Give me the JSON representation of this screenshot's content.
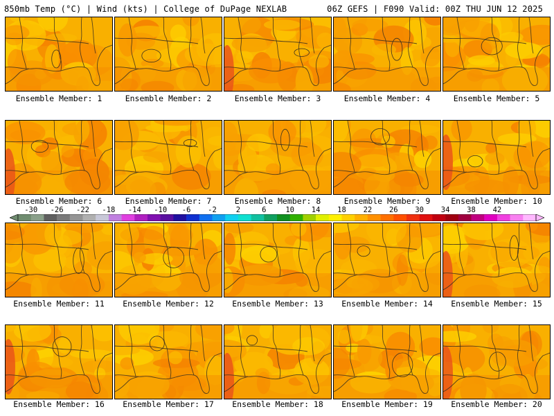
{
  "header": {
    "left": "850mb Temp (°C) | Wind (kts) | College of DuPage NEXLAB",
    "right": "06Z GEFS | F090 Valid: 00Z THU JUN 12 2025"
  },
  "panels": [
    {
      "label": "Ensemble Member: 1"
    },
    {
      "label": "Ensemble Member: 2"
    },
    {
      "label": "Ensemble Member: 3"
    },
    {
      "label": "Ensemble Member: 4"
    },
    {
      "label": "Ensemble Member: 5"
    },
    {
      "label": "Ensemble Member: 6"
    },
    {
      "label": "Ensemble Member: 7"
    },
    {
      "label": "Ensemble Member: 8"
    },
    {
      "label": "Ensemble Member: 9"
    },
    {
      "label": "Ensemble Member: 10"
    },
    {
      "label": "Ensemble Member: 11"
    },
    {
      "label": "Ensemble Member: 12"
    },
    {
      "label": "Ensemble Member: 13"
    },
    {
      "label": "Ensemble Member: 14"
    },
    {
      "label": "Ensemble Member: 15"
    },
    {
      "label": "Ensemble Member: 16"
    },
    {
      "label": "Ensemble Member: 17"
    },
    {
      "label": "Ensemble Member: 18"
    },
    {
      "label": "Ensemble Member: 19"
    },
    {
      "label": "Ensemble Member: 20"
    }
  ],
  "colorbar": {
    "labels": [
      "-30",
      "-26",
      "-22",
      "-18",
      "-14",
      "-10",
      "-6",
      "-2",
      "2",
      "6",
      "10",
      "14",
      "18",
      "22",
      "26",
      "30",
      "34",
      "38",
      "42"
    ],
    "colors": [
      "#6f8c6f",
      "#8aa08a",
      "#5f5f5f",
      "#7a7a7a",
      "#959595",
      "#b0b0b0",
      "#c8c8d8",
      "#c080e0",
      "#e040e0",
      "#b020c0",
      "#8010b0",
      "#5a10a0",
      "#2010a0",
      "#1030d0",
      "#1070f0",
      "#10a0f0",
      "#10d0f0",
      "#10e0d0",
      "#10c0a0",
      "#10a060",
      "#109020",
      "#30b000",
      "#a0d000",
      "#e0f000",
      "#fff000",
      "#ffd000",
      "#ffb000",
      "#ff9000",
      "#ff7000",
      "#ff5000",
      "#f03010",
      "#e01010",
      "#c00010",
      "#a00010",
      "#a00040",
      "#c00080",
      "#e000c0",
      "#f040e0",
      "#f880f0",
      "#ffb8ff"
    ]
  }
}
